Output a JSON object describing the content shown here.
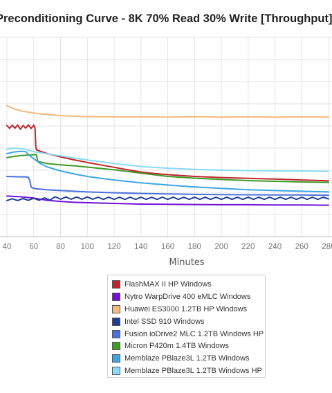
{
  "chart_data": {
    "type": "line",
    "title": "Preconditioning Curve - 8K 70% Read 30% Write [Throughput]",
    "xlabel": "Minutes",
    "ylabel": "",
    "xticks": [
      40,
      60,
      80,
      100,
      120,
      140,
      160,
      180,
      200,
      220,
      240,
      260,
      280
    ],
    "xlim": [
      40,
      280
    ],
    "ylim": [
      0,
      9
    ],
    "grid": true,
    "legend_position": "bottom-center",
    "series": [
      {
        "name": "FlashMAX II HP Windows",
        "color": "#c0232a",
        "points": [
          [
            40,
            5.02
          ],
          [
            42,
            4.89
          ],
          [
            44,
            5.03
          ],
          [
            46,
            4.9
          ],
          [
            48,
            5.04
          ],
          [
            50,
            4.85
          ],
          [
            52,
            5.02
          ],
          [
            54,
            4.9
          ],
          [
            56,
            5.05
          ],
          [
            58,
            4.88
          ],
          [
            60,
            5.04
          ],
          [
            61,
            4.9
          ],
          [
            61.5,
            4.1
          ],
          [
            62,
            3.92
          ],
          [
            70,
            3.75
          ],
          [
            80,
            3.6
          ],
          [
            90,
            3.47
          ],
          [
            100,
            3.35
          ],
          [
            110,
            3.24
          ],
          [
            120,
            3.13
          ],
          [
            130,
            3.02
          ],
          [
            140,
            2.92
          ],
          [
            150,
            2.85
          ],
          [
            160,
            2.8
          ],
          [
            170,
            2.76
          ],
          [
            180,
            2.72
          ],
          [
            200,
            2.67
          ],
          [
            220,
            2.63
          ],
          [
            240,
            2.6
          ],
          [
            260,
            2.56
          ],
          [
            280,
            2.52
          ]
        ]
      },
      {
        "name": "Nytro WarpDrive 400 eMLC Windows",
        "color": "#7010d8",
        "points": [
          [
            40,
            1.83
          ],
          [
            50,
            1.8
          ],
          [
            60,
            1.74
          ],
          [
            70,
            1.64
          ],
          [
            80,
            1.59
          ],
          [
            90,
            1.55
          ],
          [
            100,
            1.53
          ],
          [
            120,
            1.5
          ],
          [
            140,
            1.47
          ],
          [
            160,
            1.46
          ],
          [
            180,
            1.45
          ],
          [
            200,
            1.44
          ],
          [
            220,
            1.44
          ],
          [
            240,
            1.43
          ],
          [
            260,
            1.43
          ],
          [
            280,
            1.42
          ]
        ]
      },
      {
        "name": "Huawei ES3000 1.2TB HP Windows",
        "color": "#f4b97b",
        "points": [
          [
            40,
            5.92
          ],
          [
            45,
            5.78
          ],
          [
            50,
            5.68
          ],
          [
            60,
            5.58
          ],
          [
            70,
            5.52
          ],
          [
            80,
            5.47
          ],
          [
            90,
            5.44
          ],
          [
            100,
            5.42
          ],
          [
            120,
            5.41
          ],
          [
            140,
            5.41
          ],
          [
            160,
            5.4
          ],
          [
            180,
            5.42
          ],
          [
            200,
            5.4
          ],
          [
            220,
            5.41
          ],
          [
            240,
            5.4
          ],
          [
            260,
            5.41
          ],
          [
            280,
            5.4
          ]
        ]
      },
      {
        "name": "Intel SSD 910 Windows",
        "color": "#1e3c9a",
        "points": [
          [
            40,
            1.63
          ],
          [
            44,
            1.71
          ],
          [
            48,
            1.63
          ],
          [
            52,
            1.72
          ],
          [
            56,
            1.64
          ],
          [
            60,
            1.73
          ],
          [
            64,
            1.64
          ],
          [
            68,
            1.75
          ],
          [
            72,
            1.65
          ],
          [
            76,
            1.8
          ],
          [
            80,
            1.69
          ],
          [
            84,
            1.79
          ],
          [
            88,
            1.69
          ],
          [
            92,
            1.79
          ],
          [
            96,
            1.69
          ],
          [
            100,
            1.79
          ],
          [
            104,
            1.69
          ],
          [
            108,
            1.78
          ],
          [
            112,
            1.68
          ],
          [
            116,
            1.78
          ],
          [
            120,
            1.68
          ],
          [
            124,
            1.78
          ],
          [
            128,
            1.68
          ],
          [
            132,
            1.78
          ],
          [
            136,
            1.68
          ],
          [
            140,
            1.78
          ],
          [
            144,
            1.68
          ],
          [
            148,
            1.78
          ],
          [
            152,
            1.68
          ],
          [
            156,
            1.78
          ],
          [
            160,
            1.68
          ],
          [
            164,
            1.78
          ],
          [
            168,
            1.68
          ],
          [
            172,
            1.78
          ],
          [
            176,
            1.68
          ],
          [
            180,
            1.78
          ],
          [
            184,
            1.68
          ],
          [
            188,
            1.78
          ],
          [
            192,
            1.68
          ],
          [
            196,
            1.78
          ],
          [
            200,
            1.68
          ],
          [
            204,
            1.78
          ],
          [
            208,
            1.68
          ],
          [
            212,
            1.78
          ],
          [
            216,
            1.68
          ],
          [
            220,
            1.78
          ],
          [
            224,
            1.68
          ],
          [
            228,
            1.78
          ],
          [
            232,
            1.68
          ],
          [
            236,
            1.78
          ],
          [
            240,
            1.68
          ],
          [
            244,
            1.78
          ],
          [
            248,
            1.68
          ],
          [
            252,
            1.78
          ],
          [
            256,
            1.68
          ],
          [
            260,
            1.78
          ],
          [
            264,
            1.68
          ],
          [
            268,
            1.78
          ],
          [
            272,
            1.68
          ],
          [
            276,
            1.78
          ],
          [
            280,
            1.7
          ]
        ]
      },
      {
        "name": "Fusion ioDrive2 MLC 1.2TB Windows HP",
        "color": "#4a6ee0",
        "points": [
          [
            40,
            2.72
          ],
          [
            50,
            2.7
          ],
          [
            54,
            2.7
          ],
          [
            56,
            2.68
          ],
          [
            57,
            2.55
          ],
          [
            58,
            2.25
          ],
          [
            59,
            2.2
          ],
          [
            62,
            2.16
          ],
          [
            70,
            2.12
          ],
          [
            80,
            2.08
          ],
          [
            90,
            2.05
          ],
          [
            100,
            2.02
          ],
          [
            120,
            1.98
          ],
          [
            140,
            1.95
          ],
          [
            160,
            1.93
          ],
          [
            180,
            1.91
          ],
          [
            200,
            1.9
          ],
          [
            220,
            1.89
          ],
          [
            240,
            1.88
          ],
          [
            260,
            1.88
          ],
          [
            280,
            1.87
          ]
        ]
      },
      {
        "name": "Micron P420m 1.4TB Windows",
        "color": "#3c9a26",
        "points": [
          [
            40,
            3.57
          ],
          [
            45,
            3.62
          ],
          [
            50,
            3.66
          ],
          [
            55,
            3.68
          ],
          [
            60,
            3.7
          ],
          [
            62,
            3.71
          ],
          [
            63,
            3.4
          ],
          [
            70,
            3.3
          ],
          [
            80,
            3.24
          ],
          [
            90,
            3.2
          ],
          [
            100,
            3.14
          ],
          [
            120,
            3.02
          ],
          [
            140,
            2.87
          ],
          [
            160,
            2.72
          ],
          [
            180,
            2.64
          ],
          [
            200,
            2.58
          ],
          [
            220,
            2.53
          ],
          [
            240,
            2.5
          ],
          [
            260,
            2.47
          ],
          [
            280,
            2.45
          ]
        ]
      },
      {
        "name": "Memblaze PBlaze3L 1.2TB Windows",
        "color": "#3aa6e4",
        "points": [
          [
            40,
            3.75
          ],
          [
            45,
            3.82
          ],
          [
            50,
            3.85
          ],
          [
            54,
            3.84
          ],
          [
            56,
            3.7
          ],
          [
            60,
            3.52
          ],
          [
            65,
            3.3
          ],
          [
            70,
            3.15
          ],
          [
            80,
            2.97
          ],
          [
            90,
            2.83
          ],
          [
            100,
            2.72
          ],
          [
            110,
            2.63
          ],
          [
            120,
            2.56
          ],
          [
            140,
            2.43
          ],
          [
            160,
            2.33
          ],
          [
            180,
            2.24
          ],
          [
            200,
            2.18
          ],
          [
            220,
            2.12
          ],
          [
            240,
            2.08
          ],
          [
            260,
            2.05
          ],
          [
            280,
            2.02
          ]
        ]
      },
      {
        "name": "Memblaze PBlaze3L 1.2TB Windows HP",
        "color": "#86dcf8",
        "points": [
          [
            40,
            3.95
          ],
          [
            45,
            4.0
          ],
          [
            50,
            3.97
          ],
          [
            55,
            3.92
          ],
          [
            60,
            3.84
          ],
          [
            70,
            3.74
          ],
          [
            80,
            3.65
          ],
          [
            90,
            3.55
          ],
          [
            100,
            3.46
          ],
          [
            110,
            3.38
          ],
          [
            120,
            3.3
          ],
          [
            140,
            3.17
          ],
          [
            160,
            3.09
          ],
          [
            180,
            3.04
          ],
          [
            200,
            3.0
          ],
          [
            220,
            2.98
          ],
          [
            240,
            2.97
          ],
          [
            260,
            2.96
          ],
          [
            280,
            2.95
          ]
        ]
      }
    ]
  }
}
